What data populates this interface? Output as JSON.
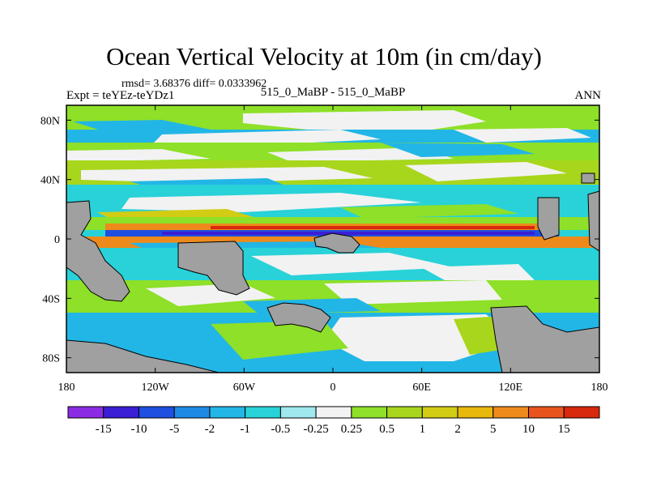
{
  "chart_data": {
    "type": "heatmap",
    "title": "Ocean Vertical Velocity at 10m (in cm/day)",
    "stats_line": "rmsd= 3.68376 diff= 0.0333962",
    "experiment_label": "Expt = teYEz-teYDz1",
    "comparison_label": "515_0_MaBP - 515_0_MaBP",
    "season_label": "ANN",
    "x_range": [
      -180,
      180
    ],
    "y_range": [
      -90,
      90
    ],
    "x_ticks": [
      {
        "value": -180,
        "label": "180"
      },
      {
        "value": -120,
        "label": "120W"
      },
      {
        "value": -60,
        "label": "60W"
      },
      {
        "value": 0,
        "label": "0"
      },
      {
        "value": 60,
        "label": "60E"
      },
      {
        "value": 120,
        "label": "120E"
      },
      {
        "value": 180,
        "label": "180"
      }
    ],
    "y_ticks": [
      {
        "value": 80,
        "label": "80N"
      },
      {
        "value": 40,
        "label": "40N"
      },
      {
        "value": 0,
        "label": "0"
      },
      {
        "value": -40,
        "label": "40S"
      },
      {
        "value": -80,
        "label": "80S"
      }
    ],
    "colorbar": {
      "colors": [
        "#8c2be4",
        "#3a1fd6",
        "#1e4fe0",
        "#1e8ae6",
        "#22b6e6",
        "#28d2d8",
        "#9ee8ee",
        "#f2f2f2",
        "#8ee028",
        "#a8d61c",
        "#d2cc14",
        "#e8b80c",
        "#ee8a1c",
        "#e8541c",
        "#d8280e"
      ],
      "labels": [
        "-15",
        "-10",
        "-5",
        "-2",
        "-1",
        "-0.5",
        "-0.25",
        "0.25",
        "0.5",
        "1",
        "2",
        "5",
        "10",
        "15"
      ]
    },
    "land_color": "#a0a0a0"
  }
}
